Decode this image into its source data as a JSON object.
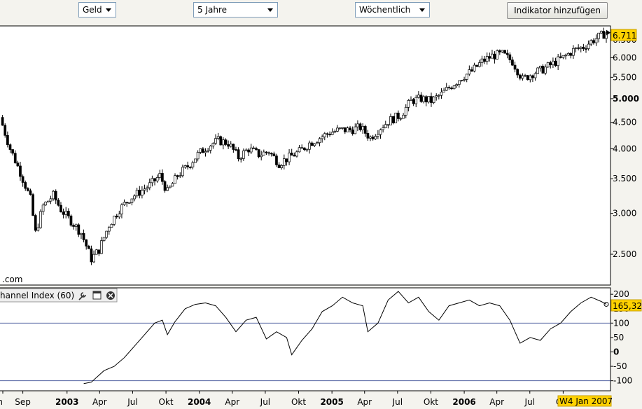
{
  "toolbar": {
    "currency": "Geld",
    "period": "5 Jahre",
    "interval": "Wöchentlich",
    "add_indicator": "Indikator hinzufügen"
  },
  "main_chart": {
    "watermark": ".com",
    "last_value": "6.711"
  },
  "indicator_panel": {
    "title": "hannel Index (60)",
    "last_value": "165,32",
    "tools": [
      "wrench-icon",
      "maximize-icon",
      "close-icon"
    ]
  },
  "x_axis": {
    "cursor_label": "W4 Jan 2007"
  },
  "colors": {
    "up_candle": "#ffffff",
    "down_candle": "#000000",
    "wick": "#000000",
    "last_value_bg": "#ffd200",
    "cursor_label_bg": "#ffd200",
    "cci_line": "#000000",
    "cci_reference": "#5060a0"
  },
  "chart_data": [
    {
      "type": "candlestick",
      "y_scale": "log",
      "ylim": [
        2.2,
        6.85
      ],
      "y_ticks": [
        "2.500",
        "3.000",
        "3.500",
        "4.000",
        "4.500",
        "5.000",
        "5.500",
        "6.000",
        "6.500"
      ],
      "y_tick_values": [
        2.5,
        3.0,
        3.5,
        4.0,
        4.5,
        5.0,
        5.5,
        6.0,
        6.5
      ],
      "x_start": "2002-06-30",
      "x_end": "2007-01-28",
      "x_ticks": [
        "n",
        "Sep",
        "2003",
        "Apr",
        "Jul",
        "Okt",
        "2004",
        "Apr",
        "Jul",
        "Okt",
        "2005",
        "Apr",
        "Jul",
        "Okt",
        "2006",
        "Apr",
        "Jul",
        "Okt"
      ],
      "x_tick_dates": [
        "2002-06-15",
        "2002-09-01",
        "2003-01-01",
        "2003-04-01",
        "2003-07-01",
        "2003-10-01",
        "2004-01-01",
        "2004-04-01",
        "2004-07-01",
        "2004-10-01",
        "2005-01-01",
        "2005-04-01",
        "2005-07-01",
        "2005-10-01",
        "2006-01-01",
        "2006-04-01",
        "2006-07-01",
        "2006-10-01"
      ],
      "bold_ticks": [
        "2003",
        "2004",
        "2005",
        "2006"
      ],
      "series": [
        {
          "close_path": [
            [
              "2002-06-30",
              4.6
            ],
            [
              "2002-07-28",
              4.0
            ],
            [
              "2002-08-25",
              3.6
            ],
            [
              "2002-09-22",
              3.2
            ],
            [
              "2002-10-06",
              2.75
            ],
            [
              "2002-10-27",
              3.1
            ],
            [
              "2002-11-24",
              3.25
            ],
            [
              "2002-12-15",
              3.05
            ],
            [
              "2003-01-12",
              2.9
            ],
            [
              "2003-02-09",
              2.75
            ],
            [
              "2003-03-09",
              2.45
            ],
            [
              "2003-03-30",
              2.55
            ],
            [
              "2003-04-27",
              2.85
            ],
            [
              "2003-05-25",
              3.05
            ],
            [
              "2003-06-22",
              3.2
            ],
            [
              "2003-07-20",
              3.3
            ],
            [
              "2003-08-17",
              3.4
            ],
            [
              "2003-09-14",
              3.55
            ],
            [
              "2003-10-05",
              3.3
            ],
            [
              "2003-11-02",
              3.55
            ],
            [
              "2003-11-30",
              3.7
            ],
            [
              "2003-12-28",
              3.9
            ],
            [
              "2004-01-25",
              4.05
            ],
            [
              "2004-02-22",
              4.15
            ],
            [
              "2004-03-21",
              4.1
            ],
            [
              "2004-04-18",
              3.85
            ],
            [
              "2004-05-16",
              4.0
            ],
            [
              "2004-06-13",
              3.9
            ],
            [
              "2004-07-11",
              3.95
            ],
            [
              "2004-08-08",
              3.75
            ],
            [
              "2004-09-05",
              3.85
            ],
            [
              "2004-10-03",
              3.95
            ],
            [
              "2004-10-31",
              4.1
            ],
            [
              "2004-11-28",
              4.2
            ],
            [
              "2004-12-26",
              4.3
            ],
            [
              "2005-01-23",
              4.35
            ],
            [
              "2005-02-20",
              4.35
            ],
            [
              "2005-03-20",
              4.4
            ],
            [
              "2005-04-17",
              4.2
            ],
            [
              "2005-05-15",
              4.4
            ],
            [
              "2005-06-12",
              4.55
            ],
            [
              "2005-07-10",
              4.65
            ],
            [
              "2005-08-07",
              4.95
            ],
            [
              "2005-09-04",
              5.0
            ],
            [
              "2005-10-02",
              4.95
            ],
            [
              "2005-10-30",
              5.1
            ],
            [
              "2005-11-27",
              5.3
            ],
            [
              "2005-12-25",
              5.5
            ],
            [
              "2006-01-22",
              5.65
            ],
            [
              "2006-02-19",
              5.9
            ],
            [
              "2006-03-19",
              6.05
            ],
            [
              "2006-04-16",
              6.1
            ],
            [
              "2006-05-14",
              5.9
            ],
            [
              "2006-06-11",
              5.45
            ],
            [
              "2006-07-09",
              5.6
            ],
            [
              "2006-08-06",
              5.7
            ],
            [
              "2006-09-03",
              5.85
            ],
            [
              "2006-10-01",
              6.0
            ],
            [
              "2006-10-29",
              6.2
            ],
            [
              "2006-11-26",
              6.3
            ],
            [
              "2006-12-24",
              6.5
            ],
            [
              "2007-01-28",
              6.711
            ]
          ]
        }
      ]
    },
    {
      "type": "line",
      "title": "hannel Index (60)",
      "ylim": [
        -130,
        215
      ],
      "y_ticks": [
        "200",
        "150",
        "100",
        "50",
        "0",
        "-50",
        "-100"
      ],
      "y_tick_values": [
        200,
        150,
        100,
        50,
        0,
        -50,
        -100
      ],
      "reference_lines": [
        100,
        -100
      ],
      "series": [
        {
          "points": [
            [
              "2003-02-16",
              -110
            ],
            [
              "2003-03-09",
              -105
            ],
            [
              "2003-04-13",
              -65
            ],
            [
              "2003-05-11",
              -50
            ],
            [
              "2003-06-08",
              -20
            ],
            [
              "2003-07-06",
              20
            ],
            [
              "2003-08-03",
              60
            ],
            [
              "2003-08-31",
              100
            ],
            [
              "2003-09-21",
              110
            ],
            [
              "2003-10-05",
              60
            ],
            [
              "2003-10-26",
              105
            ],
            [
              "2003-11-23",
              150
            ],
            [
              "2003-12-21",
              165
            ],
            [
              "2004-01-18",
              170
            ],
            [
              "2004-02-15",
              160
            ],
            [
              "2004-03-14",
              120
            ],
            [
              "2004-04-11",
              70
            ],
            [
              "2004-05-09",
              110
            ],
            [
              "2004-06-06",
              120
            ],
            [
              "2004-07-04",
              45
            ],
            [
              "2004-08-01",
              70
            ],
            [
              "2004-08-29",
              50
            ],
            [
              "2004-09-12",
              -10
            ],
            [
              "2004-10-10",
              40
            ],
            [
              "2004-11-07",
              80
            ],
            [
              "2004-12-05",
              140
            ],
            [
              "2005-01-02",
              160
            ],
            [
              "2005-01-30",
              190
            ],
            [
              "2005-02-27",
              170
            ],
            [
              "2005-03-27",
              160
            ],
            [
              "2005-04-10",
              70
            ],
            [
              "2005-05-08",
              100
            ],
            [
              "2005-06-05",
              180
            ],
            [
              "2005-07-03",
              210
            ],
            [
              "2005-07-31",
              170
            ],
            [
              "2005-08-28",
              190
            ],
            [
              "2005-09-25",
              140
            ],
            [
              "2005-10-23",
              110
            ],
            [
              "2005-11-20",
              160
            ],
            [
              "2005-12-18",
              170
            ],
            [
              "2006-01-15",
              180
            ],
            [
              "2006-02-12",
              160
            ],
            [
              "2006-03-12",
              170
            ],
            [
              "2006-04-09",
              160
            ],
            [
              "2006-05-07",
              110
            ],
            [
              "2006-06-04",
              30
            ],
            [
              "2006-07-02",
              50
            ],
            [
              "2006-07-30",
              40
            ],
            [
              "2006-08-27",
              80
            ],
            [
              "2006-09-24",
              100
            ],
            [
              "2006-10-22",
              140
            ],
            [
              "2006-11-19",
              170
            ],
            [
              "2006-12-17",
              190
            ],
            [
              "2007-01-14",
              175
            ],
            [
              "2007-01-28",
              165.32
            ]
          ]
        }
      ]
    }
  ]
}
